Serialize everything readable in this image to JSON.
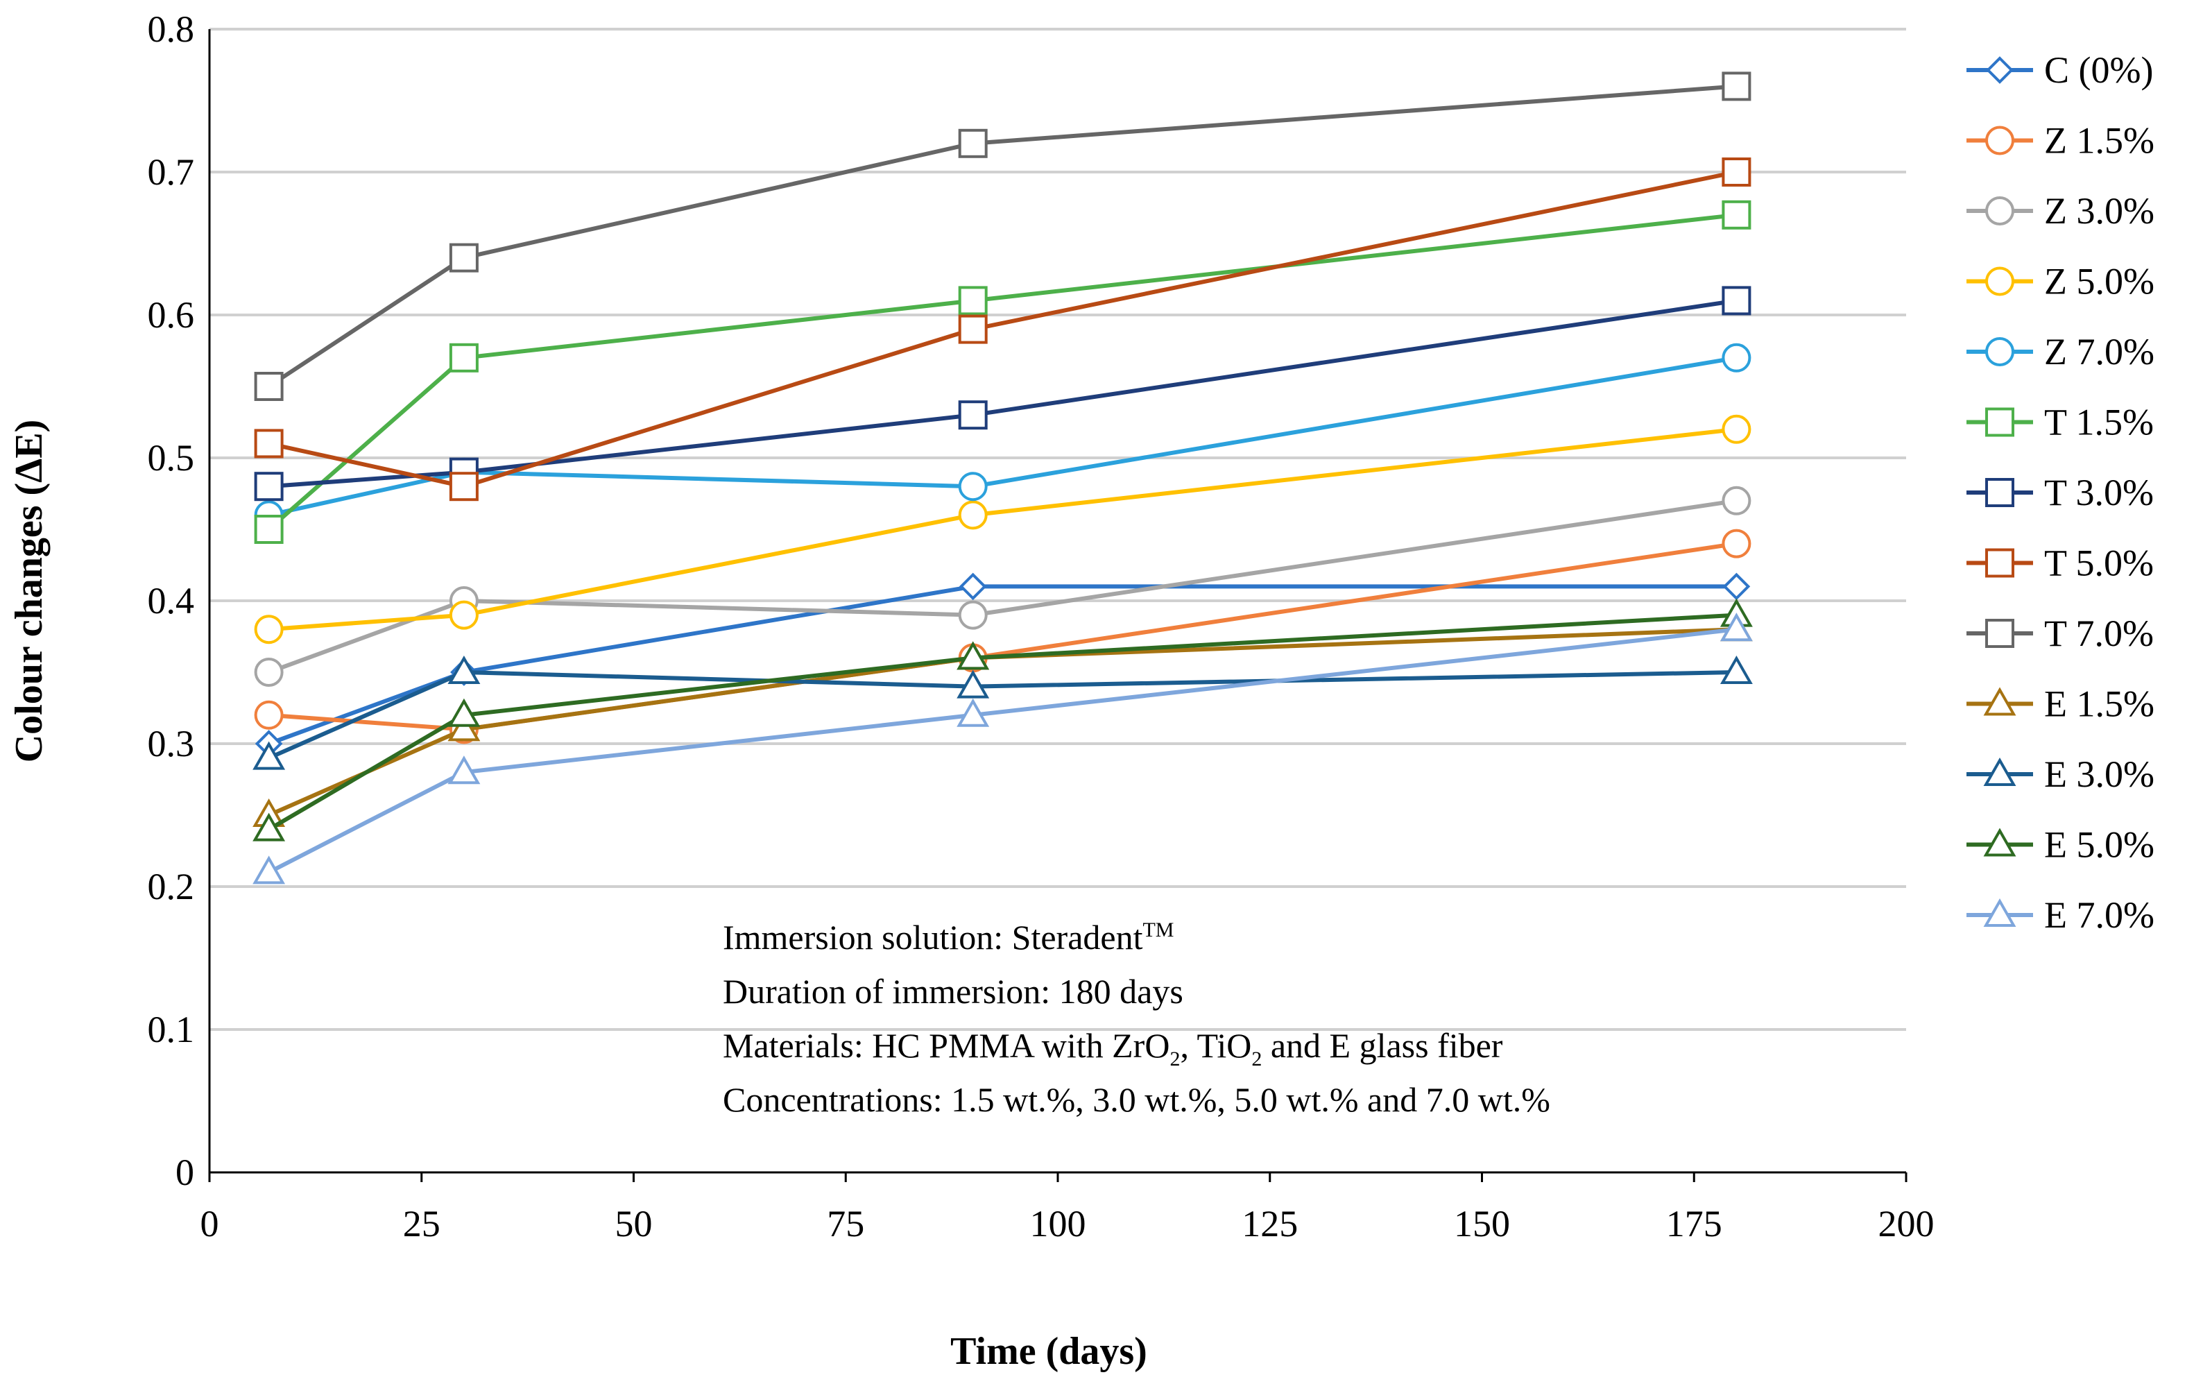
{
  "chart_data": {
    "type": "line",
    "title": "",
    "xlabel": "Time (days)",
    "ylabel": "Colour changes (ΔE)",
    "xlim": [
      0,
      200
    ],
    "ylim": [
      0,
      0.8
    ],
    "xticks": [
      "0",
      "25",
      "50",
      "75",
      "100",
      "125",
      "150",
      "175",
      "200"
    ],
    "yticks": [
      "0",
      "0.1",
      "0.2",
      "0.3",
      "0.4",
      "0.5",
      "0.6",
      "0.7",
      "0.8"
    ],
    "grid": true,
    "legend_position": "right",
    "x": [
      7,
      30,
      90,
      180
    ],
    "series": [
      {
        "name": "C (0%)",
        "marker": "diamond",
        "color": "#2E75C8",
        "values": [
          0.3,
          0.35,
          0.41,
          0.41
        ]
      },
      {
        "name": "Z 1.5%",
        "marker": "circle",
        "color": "#F07F3C",
        "values": [
          0.32,
          0.31,
          0.36,
          0.44
        ]
      },
      {
        "name": "Z 3.0%",
        "marker": "circle",
        "color": "#A5A5A5",
        "values": [
          0.35,
          0.4,
          0.39,
          0.47
        ]
      },
      {
        "name": "Z 5.0%",
        "marker": "circle",
        "color": "#FFC000",
        "values": [
          0.38,
          0.39,
          0.46,
          0.52
        ]
      },
      {
        "name": "Z 7.0%",
        "marker": "circle",
        "color": "#2BA1DC",
        "values": [
          0.46,
          0.49,
          0.48,
          0.57
        ]
      },
      {
        "name": "T 1.5%",
        "marker": "square",
        "color": "#4DB04A",
        "values": [
          0.45,
          0.57,
          0.61,
          0.67
        ]
      },
      {
        "name": "T 3.0%",
        "marker": "square",
        "color": "#1F3D7A",
        "values": [
          0.48,
          0.49,
          0.53,
          0.61
        ]
      },
      {
        "name": "T 5.0%",
        "marker": "square",
        "color": "#B84A14",
        "values": [
          0.51,
          0.48,
          0.59,
          0.7
        ]
      },
      {
        "name": "T 7.0%",
        "marker": "square",
        "color": "#666666",
        "values": [
          0.55,
          0.64,
          0.72,
          0.76
        ]
      },
      {
        "name": "E 1.5%",
        "marker": "triangle",
        "color": "#A67312",
        "values": [
          0.25,
          0.31,
          0.36,
          0.38
        ]
      },
      {
        "name": "E 3.0%",
        "marker": "triangle",
        "color": "#1B5C8F",
        "values": [
          0.29,
          0.35,
          0.34,
          0.35
        ]
      },
      {
        "name": "E 5.0%",
        "marker": "triangle",
        "color": "#2E6B22",
        "values": [
          0.24,
          0.32,
          0.36,
          0.39
        ]
      },
      {
        "name": "E 7.0%",
        "marker": "triangle",
        "color": "#7EA6DC",
        "values": [
          0.21,
          0.28,
          0.32,
          0.38
        ]
      }
    ],
    "annotation": {
      "solution_label": "Immersion solution:  Steradent",
      "solution_tm": "TM",
      "duration": "Duration of immersion:  180 days",
      "materials_a": "Materials: HC PMMA with ZrO",
      "materials_sub1": "2",
      "materials_b": ", TiO",
      "materials_sub2": "2",
      "materials_c": " and E glass fiber",
      "concentrations": "Concentrations: 1.5 wt.%,  3.0 wt.%,  5.0 wt.% and 7.0 wt.%"
    }
  }
}
